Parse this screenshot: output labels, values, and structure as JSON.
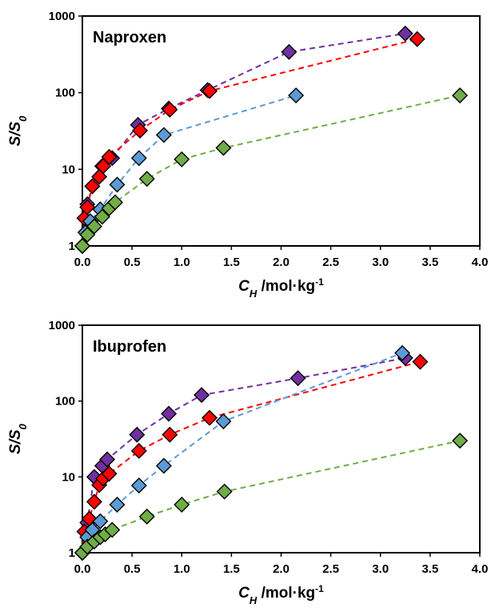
{
  "chart_data": [
    {
      "type": "scatter",
      "title": "Naproxen",
      "xlabel": {
        "symbol": "C",
        "subscript": "H",
        "rest": " /mol·kg",
        "superscript": "-1"
      },
      "ylabel": {
        "symbol": "S/S",
        "subscript": "0"
      },
      "xlim": [
        0,
        4
      ],
      "ylim": [
        1,
        1000
      ],
      "yscale": "log",
      "x_ticks": [
        "0.0",
        "0.5",
        "1.0",
        "1.5",
        "2.0",
        "2.5",
        "3.0",
        "3.5",
        "4.0"
      ],
      "y_ticks": [
        "1",
        "10",
        "100",
        "1000"
      ],
      "marker": "diamond",
      "line_style": "dashed",
      "series": [
        {
          "color": "#7030A0",
          "x": [
            0.0,
            0.05,
            0.1,
            0.2,
            0.3,
            0.56,
            0.87,
            1.26,
            2.08,
            3.25
          ],
          "y": [
            1,
            3.5,
            6,
            11,
            14,
            38,
            62,
            108,
            340,
            590
          ]
        },
        {
          "color": "#FF0000",
          "x": [
            0.0,
            0.02,
            0.05,
            0.1,
            0.17,
            0.21,
            0.27,
            0.58,
            0.88,
            1.28,
            3.37
          ],
          "y": [
            1,
            2.3,
            3.2,
            6,
            8,
            11,
            14.5,
            32,
            60,
            105,
            500
          ]
        },
        {
          "color": "#5B9BD5",
          "x": [
            0.0,
            0.03,
            0.08,
            0.18,
            0.35,
            0.57,
            0.82,
            2.15
          ],
          "y": [
            1,
            1.5,
            2.1,
            3,
            6.3,
            14,
            28,
            92
          ]
        },
        {
          "color": "#70AD47",
          "x": [
            0.0,
            0.05,
            0.12,
            0.2,
            0.27,
            0.33,
            0.65,
            1.0,
            1.42,
            3.8
          ],
          "y": [
            1,
            1.4,
            1.8,
            2.4,
            3.1,
            3.7,
            7.5,
            13.5,
            19,
            92
          ]
        }
      ]
    },
    {
      "type": "scatter",
      "title": "Ibuprofen",
      "xlabel": {
        "symbol": "C",
        "subscript": "H",
        "rest": " /mol·kg",
        "superscript": "-1"
      },
      "ylabel": {
        "symbol": "S/S",
        "subscript": "0"
      },
      "xlim": [
        0,
        4
      ],
      "ylim": [
        1,
        1000
      ],
      "yscale": "log",
      "x_ticks": [
        "0.0",
        "0.5",
        "1.0",
        "1.5",
        "2.0",
        "2.5",
        "3.0",
        "3.5",
        "4.0"
      ],
      "y_ticks": [
        "1",
        "10",
        "100",
        "1000"
      ],
      "marker": "diamond",
      "line_style": "dashed",
      "series": [
        {
          "color": "#7030A0",
          "x": [
            0.0,
            0.05,
            0.12,
            0.2,
            0.25,
            0.55,
            0.87,
            1.2,
            2.17,
            3.25
          ],
          "y": [
            1,
            2.5,
            10,
            14,
            17,
            36,
            68,
            120,
            200,
            370
          ]
        },
        {
          "color": "#FF0000",
          "x": [
            0.0,
            0.02,
            0.07,
            0.12,
            0.17,
            0.21,
            0.27,
            0.57,
            0.88,
            1.28,
            3.4
          ],
          "y": [
            1,
            1.9,
            2.8,
            4.7,
            7.8,
            9.5,
            11,
            22,
            36,
            60,
            330
          ]
        },
        {
          "color": "#5B9BD5",
          "x": [
            0.0,
            0.05,
            0.1,
            0.18,
            0.35,
            0.57,
            0.82,
            1.42,
            3.22
          ],
          "y": [
            1,
            1.6,
            2,
            2.6,
            4.3,
            7.7,
            14,
            54,
            430
          ]
        },
        {
          "color": "#70AD47",
          "x": [
            0.0,
            0.05,
            0.12,
            0.18,
            0.23,
            0.3,
            0.65,
            1.0,
            1.43,
            3.8
          ],
          "y": [
            1,
            1.2,
            1.4,
            1.6,
            1.75,
            2,
            3,
            4.3,
            6.4,
            30
          ]
        }
      ]
    }
  ]
}
